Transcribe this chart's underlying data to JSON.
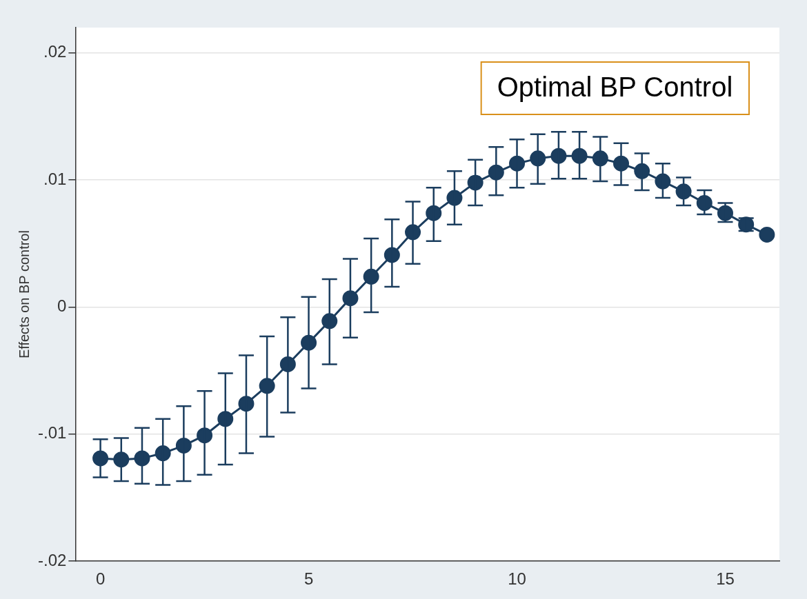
{
  "chart_data": {
    "type": "line",
    "ylabel": "Effects on BP control",
    "annotations": [
      "Optimal BP Control"
    ],
    "x": [
      0,
      0.5,
      1,
      1.5,
      2,
      2.5,
      3,
      3.5,
      4,
      4.5,
      5,
      5.5,
      6,
      6.5,
      7,
      7.5,
      8,
      8.5,
      9,
      9.5,
      10,
      10.5,
      11,
      11.5,
      12,
      12.5,
      13,
      13.5,
      14,
      14.5,
      15,
      15.5,
      16
    ],
    "series": [
      {
        "color": "#1b3d5e",
        "values": [
          -0.0119,
          -0.012,
          -0.0119,
          -0.0115,
          -0.0109,
          -0.0101,
          -0.0088,
          -0.0076,
          -0.0062,
          -0.0045,
          -0.0028,
          -0.0011,
          0.0007,
          0.0024,
          0.0041,
          0.0059,
          0.0074,
          0.0086,
          0.0098,
          0.0106,
          0.0113,
          0.0117,
          0.0119,
          0.0119,
          0.0117,
          0.0113,
          0.0107,
          0.0099,
          0.0091,
          0.0082,
          0.0074,
          0.0065,
          0.0057
        ],
        "errors": [
          [
            -0.0134,
            -0.0104
          ],
          [
            -0.0137,
            -0.0103
          ],
          [
            -0.0139,
            -0.0095
          ],
          [
            -0.014,
            -0.0088
          ],
          [
            -0.0137,
            -0.0078
          ],
          [
            -0.0132,
            -0.0066
          ],
          [
            -0.0124,
            -0.0052
          ],
          [
            -0.0115,
            -0.0038
          ],
          [
            -0.0102,
            -0.0023
          ],
          [
            -0.0083,
            -0.0008
          ],
          [
            -0.0064,
            0.0008
          ],
          [
            -0.0045,
            0.0022
          ],
          [
            -0.0024,
            0.0038
          ],
          [
            -0.0004,
            0.0054
          ],
          [
            0.0016,
            0.0069
          ],
          [
            0.0034,
            0.0083
          ],
          [
            0.0052,
            0.0094
          ],
          [
            0.0065,
            0.0107
          ],
          [
            0.008,
            0.0116
          ],
          [
            0.0088,
            0.0126
          ],
          [
            0.0094,
            0.0132
          ],
          [
            0.0097,
            0.0136
          ],
          [
            0.0101,
            0.0138
          ],
          [
            0.0101,
            0.0138
          ],
          [
            0.0099,
            0.0134
          ],
          [
            0.0096,
            0.0129
          ],
          [
            0.0092,
            0.0121
          ],
          [
            0.0086,
            0.0113
          ],
          [
            0.008,
            0.0102
          ],
          [
            0.0073,
            0.0092
          ],
          [
            0.0067,
            0.0082
          ],
          [
            0.006,
            0.007
          ],
          null
        ]
      }
    ],
    "xlim": [
      -0.6,
      16.3
    ],
    "xticks": [
      0,
      5,
      10,
      15
    ],
    "ylim": [
      -0.02,
      0.022
    ],
    "yticks": [
      {
        "value": -0.02,
        "label": "-.02"
      },
      {
        "value": -0.01,
        "label": "-.01"
      },
      {
        "value": 0,
        "label": "0"
      },
      {
        "value": 0.01,
        "label": ".01"
      },
      {
        "value": 0.02,
        "label": ".02"
      }
    ],
    "grid": "y",
    "marker": "circle",
    "line_style": "solid",
    "legend": false
  }
}
